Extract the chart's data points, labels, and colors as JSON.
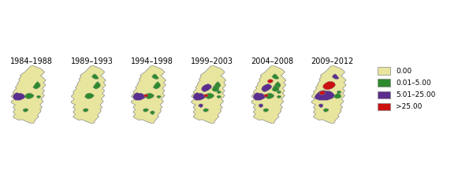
{
  "title_labels": [
    "1984–1988",
    "1989–1993",
    "1994–1998",
    "1999–2003",
    "2004–2008",
    "2009–2012"
  ],
  "legend_labels": [
    "0.00",
    "0.01–5.00",
    "5.01–25.00",
    ">25.00"
  ],
  "legend_colors": [
    "#e8e59e",
    "#2d8b2d",
    "#5b2d8e",
    "#cc1111"
  ],
  "map_bg": "#e8e59e",
  "border_color": "#888888",
  "background": "#ffffff",
  "fig_width": 6.0,
  "fig_height": 2.35,
  "label_fontsize": 7.0
}
